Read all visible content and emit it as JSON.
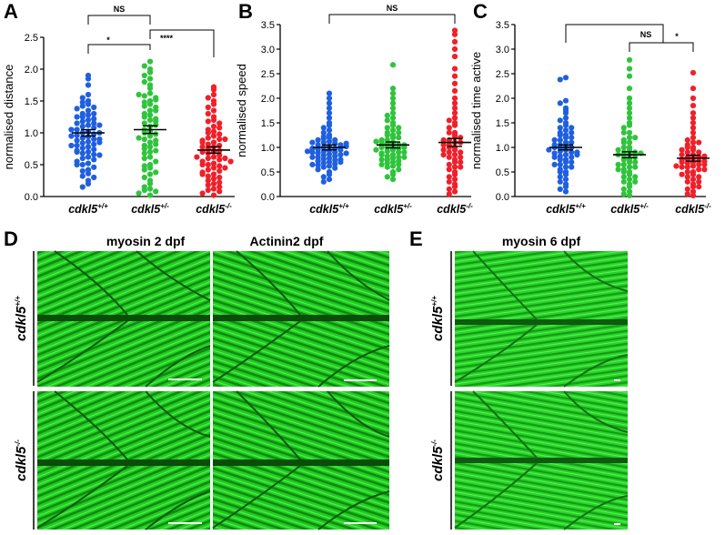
{
  "figure": {
    "panel_letters": [
      "A",
      "B",
      "C",
      "D",
      "E"
    ],
    "genotype_base": "cdkl5",
    "genotype_sups": [
      "+/+",
      "+/-",
      "-/-"
    ],
    "micro_titles": {
      "d_col1": "myosin 2 dpf",
      "d_col2": "Actinin2 dpf",
      "e_col1": "myosin 6 dpf"
    },
    "colors": {
      "wt": "#1f5fe0",
      "het": "#2fc43c",
      "hom": "#f0202a",
      "muscle": "#22d022"
    }
  },
  "chart_data": [
    {
      "type": "scatter",
      "panel": "A",
      "ylabel": "normalised distance",
      "ylim": [
        0,
        2.5
      ],
      "yticks": [
        "0.0",
        "0.5",
        "1.0",
        "1.5",
        "2.0",
        "2.5"
      ],
      "categories": [
        "cdkl5+/+",
        "cdkl5+/-",
        "cdkl5-/-"
      ],
      "means": [
        1.0,
        1.05,
        0.73
      ],
      "sem": [
        0.05,
        0.06,
        0.05
      ],
      "significance": [
        {
          "from": 0,
          "to": 1,
          "label": "NS"
        },
        {
          "from": 0,
          "to": 1,
          "label": "*"
        },
        {
          "from": 1,
          "to": 2,
          "label": "****"
        }
      ],
      "series": [
        {
          "values": [
            1.9,
            1.85,
            1.75,
            1.6,
            1.55,
            1.5,
            1.48,
            1.45,
            1.42,
            1.4,
            1.38,
            1.35,
            1.3,
            1.28,
            1.25,
            1.22,
            1.2,
            1.18,
            1.15,
            1.12,
            1.1,
            1.08,
            1.05,
            1.02,
            1.0,
            0.98,
            0.96,
            0.94,
            0.92,
            0.9,
            0.88,
            0.86,
            0.84,
            0.82,
            0.8,
            0.78,
            0.76,
            0.74,
            0.72,
            0.7,
            0.68,
            0.66,
            0.62,
            0.6,
            0.58,
            0.55,
            0.52,
            0.5,
            0.46,
            0.42,
            0.4,
            0.36,
            0.32,
            0.3,
            0.25,
            0.2,
            0.15,
            1.3,
            1.12,
            1.0,
            0.9,
            0.85,
            0.7,
            0.5,
            0.95,
            1.05,
            1.15,
            0.8,
            1.25,
            0.65
          ]
        },
        {
          "values": [
            2.12,
            2.05,
            2.0,
            1.95,
            1.9,
            1.85,
            1.8,
            1.75,
            1.7,
            1.62,
            1.58,
            1.55,
            1.5,
            1.48,
            1.45,
            1.42,
            1.4,
            1.35,
            1.3,
            1.28,
            1.25,
            1.22,
            1.2,
            1.15,
            1.1,
            1.05,
            1.02,
            1.0,
            0.98,
            0.95,
            0.9,
            0.88,
            0.85,
            0.8,
            0.78,
            0.75,
            0.7,
            0.68,
            0.62,
            0.6,
            0.55,
            0.5,
            0.45,
            0.42,
            0.38,
            0.35,
            0.3,
            0.25,
            0.2,
            0.15,
            0.12,
            0.1,
            0.08,
            0.05,
            0.02,
            1.6,
            1.35,
            1.18,
            0.92,
            0.72,
            0.48,
            1.52,
            1.12,
            0.82
          ]
        },
        {
          "values": [
            1.72,
            1.68,
            1.6,
            1.55,
            1.5,
            1.45,
            1.4,
            1.35,
            1.3,
            1.25,
            1.2,
            1.18,
            1.15,
            1.1,
            1.05,
            1.02,
            1.0,
            0.98,
            0.95,
            0.92,
            0.9,
            0.88,
            0.85,
            0.82,
            0.8,
            0.78,
            0.75,
            0.72,
            0.7,
            0.68,
            0.65,
            0.62,
            0.6,
            0.58,
            0.55,
            0.52,
            0.5,
            0.48,
            0.45,
            0.42,
            0.4,
            0.38,
            0.35,
            0.32,
            0.3,
            0.28,
            0.25,
            0.22,
            0.2,
            0.18,
            0.15,
            0.12,
            0.1,
            0.08,
            0.05,
            0.02,
            0.9,
            0.7,
            0.6,
            0.5,
            0.35,
            0.78,
            0.62,
            1.08,
            0.45,
            0.85,
            0.55
          ]
        }
      ]
    },
    {
      "type": "scatter",
      "panel": "B",
      "ylabel": "normalised speed",
      "ylim": [
        0,
        3.5
      ],
      "yticks": [
        "0.0",
        "0.5",
        "1.0",
        "1.5",
        "2.0",
        "2.5",
        "3.0",
        "3.5"
      ],
      "categories": [
        "cdkl5+/+",
        "cdkl5+/-",
        "cdkl5-/-"
      ],
      "means": [
        1.0,
        1.05,
        1.1
      ],
      "sem": [
        0.05,
        0.06,
        0.08
      ],
      "significance": [
        {
          "from": 0,
          "to": 2,
          "label": "NS"
        }
      ],
      "series": [
        {
          "values": [
            2.1,
            2.0,
            1.9,
            1.8,
            1.7,
            1.6,
            1.5,
            1.45,
            1.4,
            1.35,
            1.3,
            1.25,
            1.2,
            1.18,
            1.15,
            1.12,
            1.1,
            1.08,
            1.05,
            1.02,
            1.0,
            0.98,
            0.96,
            0.94,
            0.92,
            0.9,
            0.88,
            0.86,
            0.84,
            0.82,
            0.8,
            0.78,
            0.76,
            0.74,
            0.72,
            0.7,
            0.68,
            0.66,
            0.64,
            0.62,
            0.6,
            0.58,
            0.55,
            0.5,
            0.45,
            0.4,
            0.35,
            0.3,
            1.0,
            0.95,
            0.85,
            0.9,
            1.05,
            1.1,
            0.75,
            0.8,
            1.15,
            1.22,
            0.7,
            0.65,
            0.98,
            1.02,
            0.88,
            0.92,
            1.08
          ]
        },
        {
          "values": [
            2.68,
            2.2,
            2.1,
            2.0,
            1.9,
            1.8,
            1.7,
            1.65,
            1.6,
            1.55,
            1.5,
            1.45,
            1.4,
            1.35,
            1.3,
            1.25,
            1.2,
            1.15,
            1.1,
            1.08,
            1.05,
            1.02,
            1.0,
            0.98,
            0.95,
            0.92,
            0.9,
            0.88,
            0.85,
            0.82,
            0.8,
            0.78,
            0.75,
            0.72,
            0.7,
            0.68,
            0.65,
            0.62,
            0.6,
            0.55,
            0.5,
            0.45,
            0.4,
            0.35,
            1.0,
            1.1,
            0.9,
            1.2,
            0.85,
            1.3,
            0.95,
            1.05,
            0.75,
            1.15,
            1.25,
            0.65,
            1.4,
            0.8,
            1.0,
            1.12
          ]
        },
        {
          "values": [
            3.38,
            3.3,
            3.15,
            3.0,
            2.85,
            2.6,
            2.45,
            2.3,
            2.15,
            2.0,
            1.9,
            1.8,
            1.7,
            1.6,
            1.55,
            1.5,
            1.45,
            1.4,
            1.3,
            1.25,
            1.2,
            1.15,
            1.1,
            1.05,
            1.0,
            0.95,
            0.9,
            0.85,
            0.8,
            0.75,
            0.7,
            0.65,
            0.6,
            0.55,
            0.5,
            0.45,
            0.4,
            0.35,
            0.3,
            0.25,
            0.2,
            0.15,
            0.1,
            0.05,
            1.0,
            0.9,
            1.1,
            0.8,
            1.2,
            0.7,
            1.3,
            0.6,
            1.05,
            0.95,
            0.85,
            1.15
          ]
        }
      ]
    },
    {
      "type": "scatter",
      "panel": "C",
      "ylabel": "normalised time active",
      "ylim": [
        0,
        3.5
      ],
      "yticks": [
        "0.0",
        "0.5",
        "1.0",
        "1.5",
        "2.0",
        "2.5",
        "3.0",
        "3.5"
      ],
      "categories": [
        "cdkl5+/+",
        "cdkl5+/-",
        "cdkl5-/-"
      ],
      "means": [
        1.0,
        0.85,
        0.78
      ],
      "sem": [
        0.05,
        0.06,
        0.06
      ],
      "significance": [
        {
          "from": 0,
          "to": 2,
          "label": ""
        },
        {
          "from": 1,
          "to": 2,
          "label": "NS"
        },
        {
          "from": 1,
          "to": 2,
          "label": "*"
        }
      ],
      "series": [
        {
          "values": [
            2.42,
            2.38,
            1.95,
            1.9,
            1.8,
            1.75,
            1.7,
            1.6,
            1.55,
            1.5,
            1.45,
            1.4,
            1.35,
            1.3,
            1.25,
            1.2,
            1.15,
            1.1,
            1.05,
            1.0,
            0.98,
            0.95,
            0.92,
            0.9,
            0.88,
            0.85,
            0.82,
            0.8,
            0.75,
            0.7,
            0.65,
            0.6,
            0.55,
            0.5,
            0.45,
            0.4,
            0.35,
            0.3,
            0.25,
            0.2,
            0.15,
            0.1,
            1.0,
            1.1,
            0.9,
            1.2,
            0.8,
            1.3,
            0.7,
            1.0,
            0.95,
            1.05,
            0.6,
            1.15,
            0.85,
            1.25,
            0.75,
            0.5,
            1.4,
            0.65
          ]
        },
        {
          "values": [
            2.78,
            2.6,
            2.45,
            2.2,
            2.0,
            1.9,
            1.8,
            1.7,
            1.6,
            1.5,
            1.45,
            1.4,
            1.3,
            1.2,
            1.15,
            1.1,
            1.0,
            0.95,
            0.9,
            0.85,
            0.8,
            0.75,
            0.7,
            0.65,
            0.6,
            0.55,
            0.5,
            0.45,
            0.4,
            0.35,
            0.3,
            0.25,
            0.2,
            0.15,
            0.1,
            0.05,
            0.02,
            0.9,
            0.8,
            1.0,
            0.7,
            1.1,
            0.6,
            0.85,
            0.75,
            0.95,
            0.5,
            1.2,
            0.4,
            0.65,
            1.3,
            0.3,
            0.55,
            0.88
          ]
        },
        {
          "values": [
            2.52,
            2.2,
            2.0,
            1.85,
            1.7,
            1.6,
            1.5,
            1.4,
            1.3,
            1.2,
            1.15,
            1.1,
            1.05,
            1.0,
            0.95,
            0.9,
            0.85,
            0.8,
            0.78,
            0.75,
            0.72,
            0.7,
            0.68,
            0.65,
            0.62,
            0.6,
            0.55,
            0.5,
            0.45,
            0.4,
            0.35,
            0.3,
            0.25,
            0.2,
            0.15,
            0.1,
            0.05,
            0.02,
            0.8,
            0.7,
            0.9,
            0.6,
            1.0,
            0.5,
            0.75,
            0.65,
            0.85,
            0.4,
            0.95,
            0.3,
            0.55,
            1.1,
            0.2,
            0.45,
            0.82,
            0.72,
            0.62
          ]
        }
      ]
    }
  ]
}
